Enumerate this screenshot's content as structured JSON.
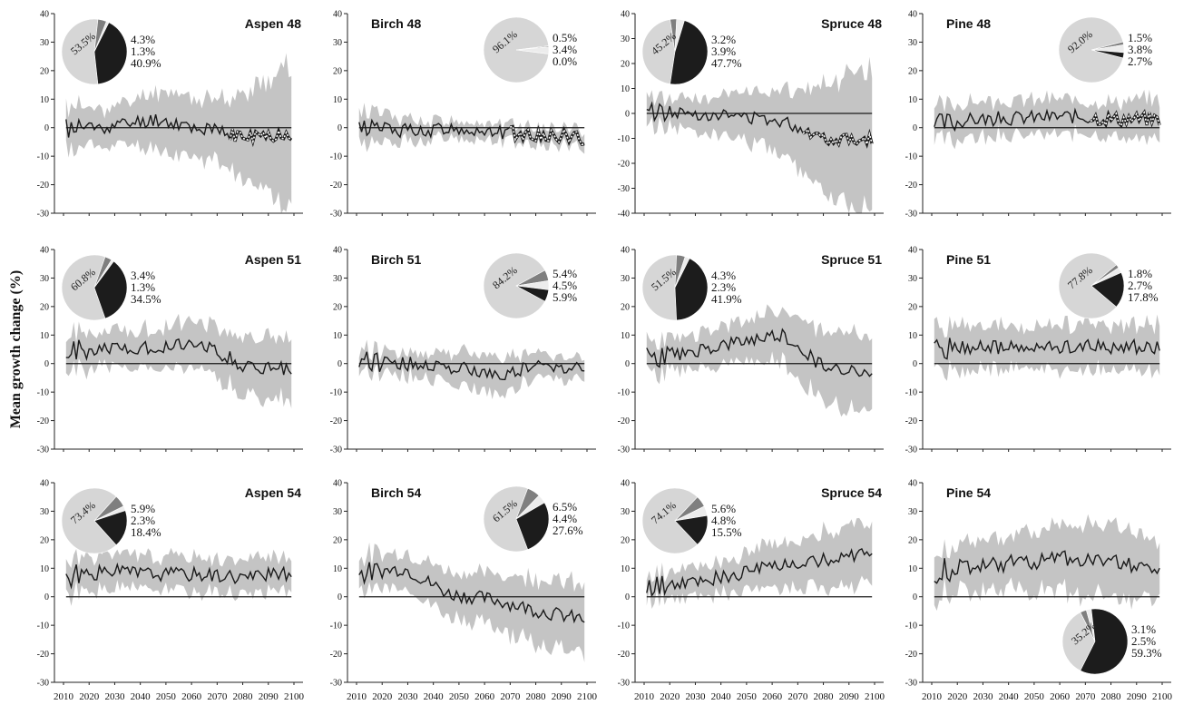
{
  "figure": {
    "ylabel": "Mean growth change (%)",
    "x_ticks": [
      "2010",
      "2020",
      "2030",
      "2040",
      "2050",
      "2060",
      "2070",
      "2080",
      "2090",
      "2100"
    ]
  },
  "colors": {
    "band": "#c4c4c4",
    "line": "#1a1a1a",
    "pie_light": "#d6d6d6",
    "pie_mid": "#7f7f7f",
    "pie_pale": "#ececec",
    "pie_dark": "#1c1c1c"
  },
  "chart_data": [
    {
      "type": "line",
      "title": "Aspen 48",
      "ylim": [
        -30,
        40
      ],
      "ticks": [
        -30,
        -20,
        -10,
        0,
        10,
        20,
        30,
        40
      ],
      "seg": [
        -0.3,
        0.5,
        3,
        -0.2,
        -3.5,
        -2
      ],
      "bw": [
        8,
        6,
        10,
        10,
        15,
        25
      ],
      "dotted_from": 2075,
      "seed": 11,
      "noise": 2.5,
      "title_pos": "right",
      "pie": {
        "pos": "top-left",
        "values": [
          53.5,
          4.3,
          1.3,
          40.9
        ],
        "labels": [
          "53.5%",
          "4.3%",
          "1.3%",
          "40.9%"
        ],
        "big": "large"
      }
    },
    {
      "type": "line",
      "title": "Birch 48",
      "ylim": [
        -30,
        40
      ],
      "ticks": [
        -30,
        -20,
        -10,
        0,
        10,
        20,
        30,
        40
      ],
      "seg": [
        0,
        -1,
        -0.5,
        -1.5,
        -2.5,
        -3.5
      ],
      "bw": [
        6,
        4,
        3,
        3,
        3,
        3
      ],
      "dotted_from": 2070,
      "seed": 12,
      "noise": 2.5,
      "title_pos": "left",
      "pie": {
        "pos": "top-right",
        "values": [
          96.1,
          0.5,
          3.4,
          0.0
        ],
        "labels": [
          "96.1%",
          "0.5%",
          "3.4%",
          "0.0%"
        ],
        "big": "large"
      }
    },
    {
      "type": "line",
      "title": "Spruce 48",
      "ylim": [
        -40,
        40
      ],
      "ticks": [
        -40,
        -30,
        -20,
        -10,
        0,
        10,
        20,
        30,
        40
      ],
      "seg": [
        1,
        0,
        -1,
        -3,
        -10,
        -10
      ],
      "bw": [
        6,
        6,
        9,
        12,
        24,
        26
      ],
      "dotted_from": 2072,
      "seed": 13,
      "noise": 2.5,
      "title_pos": "right",
      "pie": {
        "pos": "top-left",
        "values": [
          45.2,
          3.2,
          3.9,
          47.7
        ],
        "labels": [
          "45.2%",
          "3.2%",
          "3.9%",
          "47.7%"
        ],
        "big": "large"
      }
    },
    {
      "type": "line",
      "title": "Pine 48",
      "ylim": [
        -30,
        40
      ],
      "ticks": [
        -30,
        -20,
        -10,
        0,
        10,
        20,
        30,
        40
      ],
      "seg": [
        1,
        3,
        3.5,
        4,
        3,
        3
      ],
      "bw": [
        6,
        6,
        6,
        6,
        6,
        7
      ],
      "dotted_from": 2072,
      "seed": 14,
      "noise": 2.5,
      "title_pos": "left",
      "pie": {
        "pos": "top-right",
        "values": [
          92.0,
          1.5,
          3.8,
          2.7
        ],
        "labels": [
          "92.0%",
          "1.5%",
          "3.8%",
          "2.7%"
        ],
        "big": "large"
      }
    },
    {
      "type": "line",
      "title": "Aspen 51",
      "ylim": [
        -30,
        40
      ],
      "ticks": [
        -30,
        -20,
        -10,
        0,
        10,
        20,
        30,
        40
      ],
      "seg": [
        4,
        5,
        6,
        7,
        -1,
        -2
      ],
      "bw": [
        6,
        6,
        7,
        8,
        10,
        11
      ],
      "dotted_from": null,
      "seed": 21,
      "noise": 2.5,
      "title_pos": "right",
      "pie": {
        "pos": "top-left",
        "values": [
          60.8,
          3.4,
          1.3,
          34.5
        ],
        "labels": [
          "60.8%",
          "3.4%",
          "1.3%",
          "34.5%"
        ],
        "big": "large"
      }
    },
    {
      "type": "line",
      "title": "Birch 51",
      "ylim": [
        -30,
        40
      ],
      "ticks": [
        -30,
        -20,
        -10,
        0,
        10,
        20,
        30,
        40
      ],
      "seg": [
        2,
        0,
        -1,
        -4,
        -1,
        -1
      ],
      "bw": [
        4,
        4,
        5,
        7,
        4,
        4
      ],
      "dotted_from": null,
      "seed": 22,
      "noise": 2.5,
      "title_pos": "left",
      "pie": {
        "pos": "top-right",
        "values": [
          84.2,
          5.4,
          4.5,
          5.9
        ],
        "labels": [
          "84.2%",
          "5.4%",
          "4.5%",
          "5.9%"
        ],
        "big": "large"
      }
    },
    {
      "type": "line",
      "title": "Spruce 51",
      "ylim": [
        -30,
        40
      ],
      "ticks": [
        -30,
        -20,
        -10,
        0,
        10,
        20,
        30,
        40
      ],
      "seg": [
        2,
        4,
        7,
        10,
        -2,
        -2
      ],
      "bw": [
        5,
        6,
        7,
        9,
        13,
        15
      ],
      "dotted_from": null,
      "seed": 23,
      "noise": 2.5,
      "title_pos": "right",
      "pie": {
        "pos": "top-left",
        "values": [
          51.5,
          4.3,
          2.3,
          41.9
        ],
        "labels": [
          "51.5%",
          "4.3%",
          "2.3%",
          "41.9%"
        ],
        "big": "large"
      }
    },
    {
      "type": "line",
      "title": "Pine 51",
      "ylim": [
        -30,
        40
      ],
      "ticks": [
        -30,
        -20,
        -10,
        0,
        10,
        20,
        30,
        40
      ],
      "seg": [
        5,
        6,
        5,
        6,
        6,
        6
      ],
      "bw": [
        8,
        8,
        7,
        8,
        8,
        8
      ],
      "dotted_from": null,
      "seed": 24,
      "noise": 2.5,
      "title_pos": "left",
      "pie": {
        "pos": "top-right",
        "values": [
          77.8,
          1.8,
          2.7,
          17.8
        ],
        "labels": [
          "77.8%",
          "1.8%",
          "2.7%",
          "17.8%"
        ],
        "big": "large"
      }
    },
    {
      "type": "line",
      "title": "Aspen 54",
      "ylim": [
        -30,
        40
      ],
      "ticks": [
        -30,
        -20,
        -10,
        0,
        10,
        20,
        30,
        40
      ],
      "seg": [
        7,
        9,
        8,
        8,
        7,
        8
      ],
      "bw": [
        6,
        6,
        6,
        6,
        6,
        6
      ],
      "dotted_from": null,
      "seed": 31,
      "noise": 2.5,
      "title_pos": "right",
      "pie": {
        "pos": "top-left",
        "values": [
          73.4,
          5.9,
          2.3,
          18.4
        ],
        "labels": [
          "73.4%",
          "5.9%",
          "2.3%",
          "18.4%"
        ],
        "big": "large"
      }
    },
    {
      "type": "line",
      "title": "Birch 54",
      "ylim": [
        -30,
        40
      ],
      "ticks": [
        -30,
        -20,
        -10,
        0,
        10,
        20,
        30,
        40
      ],
      "seg": [
        8,
        10,
        1,
        -1,
        -5,
        -8
      ],
      "bw": [
        6,
        6,
        8,
        9,
        12,
        12
      ],
      "dotted_from": null,
      "seed": 32,
      "noise": 2.5,
      "title_pos": "left",
      "pie": {
        "pos": "top-right",
        "values": [
          61.5,
          6.5,
          4.4,
          27.6
        ],
        "labels": [
          "61.5%",
          "6.5%",
          "4.4%",
          "27.6%"
        ],
        "big": "large"
      }
    },
    {
      "type": "line",
      "title": "Spruce 54",
      "ylim": [
        -30,
        40
      ],
      "ticks": [
        -30,
        -20,
        -10,
        0,
        10,
        20,
        30,
        40
      ],
      "seg": [
        3,
        5,
        8,
        11,
        13,
        16
      ],
      "bw": [
        4,
        5,
        6,
        8,
        10,
        11
      ],
      "dotted_from": null,
      "seed": 33,
      "noise": 2.5,
      "title_pos": "right",
      "pie": {
        "pos": "top-left",
        "values": [
          74.1,
          5.6,
          4.8,
          15.5
        ],
        "labels": [
          "74.1%",
          "5.6%",
          "4.8%",
          "15.5%"
        ],
        "big": "large"
      }
    },
    {
      "type": "line",
      "title": "Pine 54",
      "ylim": [
        -30,
        40
      ],
      "ticks": [
        -30,
        -20,
        -10,
        0,
        10,
        20,
        30,
        40
      ],
      "seg": [
        9,
        11,
        12,
        14,
        12,
        11
      ],
      "bw": [
        8,
        9,
        10,
        12,
        12,
        10
      ],
      "dotted_from": null,
      "seed": 34,
      "noise": 3,
      "title_pos": "left",
      "pie": {
        "pos": "bottom-right",
        "values": [
          35.2,
          3.1,
          2.5,
          59.3
        ],
        "labels": [
          "35.2%",
          "3.1%",
          "2.5%",
          "59.3%"
        ],
        "big": "large"
      }
    }
  ]
}
